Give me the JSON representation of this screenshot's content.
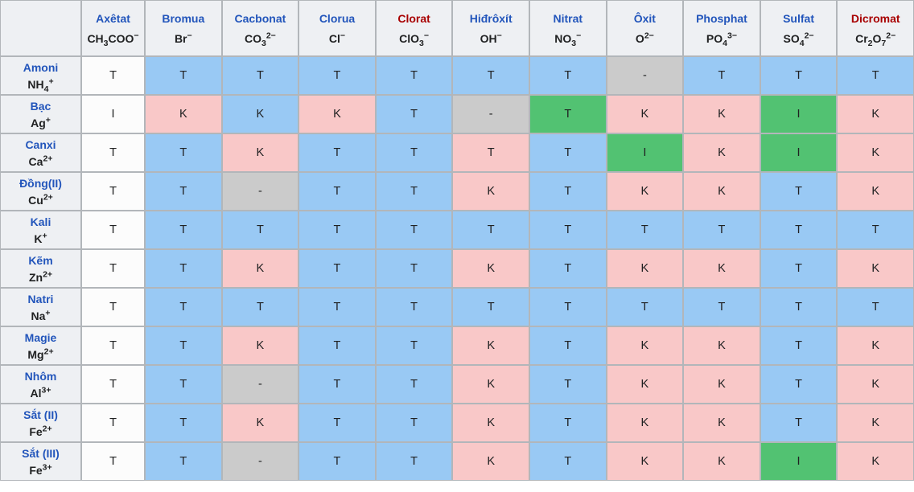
{
  "table": {
    "corner_label": "",
    "cell_colors": {
      "white": "#fcfcfc",
      "blue": "#99c9f4",
      "pink": "#f9c8c8",
      "green": "#52c272",
      "gray": "#cbcbcb"
    },
    "text_colors": {
      "link_blue": "#2255bb",
      "link_red": "#a80000",
      "formula": "#202122",
      "value": "#202122"
    },
    "value_legend_letters": [
      "T",
      "K",
      "I",
      "-"
    ],
    "columns": [
      {
        "label": "Axêtat",
        "formula": "CH~3~COO^−^",
        "label_color": "blue"
      },
      {
        "label": "Bromua",
        "formula": "Br^−^",
        "label_color": "blue"
      },
      {
        "label": "Cacbonat",
        "formula": "CO~3~^2−^",
        "label_color": "blue"
      },
      {
        "label": "Clorua",
        "formula": "Cl^−^",
        "label_color": "blue"
      },
      {
        "label": "Clorat",
        "formula": "ClO~3~^−^",
        "label_color": "red"
      },
      {
        "label": "Hiđrôxít",
        "formula": "OH^−^",
        "label_color": "blue"
      },
      {
        "label": "Nitrat",
        "formula": "NO~3~^−^",
        "label_color": "blue"
      },
      {
        "label": "Ôxit",
        "formula": "O^2−^",
        "label_color": "blue"
      },
      {
        "label": "Phosphat",
        "formula": "PO~4~^3−^",
        "label_color": "blue"
      },
      {
        "label": "Sulfat",
        "formula": "SO~4~^2−^",
        "label_color": "blue"
      },
      {
        "label": "Dicromat",
        "formula": "Cr~2~O~7~^2−^",
        "label_color": "red"
      }
    ],
    "rows": [
      {
        "label": "Amoni",
        "formula": "NH~4~^+^",
        "cells": [
          "T|white",
          "T|blue",
          "T|blue",
          "T|blue",
          "T|blue",
          "T|blue",
          "T|blue",
          "-|gray",
          "T|blue",
          "T|blue",
          "T|blue"
        ]
      },
      {
        "label": "Bạc",
        "formula": "Ag^+^",
        "cells": [
          "I|white",
          "K|pink",
          "K|blue",
          "K|pink",
          "T|blue",
          "-|gray",
          "T|green",
          "K|pink",
          "K|pink",
          "I|green",
          "K|pink"
        ]
      },
      {
        "label": "Canxi",
        "formula": "Ca^2+^",
        "cells": [
          "T|white",
          "T|blue",
          "K|pink",
          "T|blue",
          "T|blue",
          "T|pink",
          "T|blue",
          "I|green",
          "K|pink",
          "I|green",
          "K|pink"
        ]
      },
      {
        "label": "Đồng(II)",
        "formula": "Cu^2+^",
        "cells": [
          "T|white",
          "T|blue",
          "-|gray",
          "T|blue",
          "T|blue",
          "K|pink",
          "T|blue",
          "K|pink",
          "K|pink",
          "T|blue",
          "K|pink"
        ]
      },
      {
        "label": "Kali",
        "formula": "K^+^",
        "cells": [
          "T|white",
          "T|blue",
          "T|blue",
          "T|blue",
          "T|blue",
          "T|blue",
          "T|blue",
          "T|blue",
          "T|blue",
          "T|blue",
          "T|blue"
        ]
      },
      {
        "label": "Kẽm",
        "formula": "Zn^2+^",
        "cells": [
          "T|white",
          "T|blue",
          "K|pink",
          "T|blue",
          "T|blue",
          "K|pink",
          "T|blue",
          "K|pink",
          "K|pink",
          "T|blue",
          "K|pink"
        ]
      },
      {
        "label": "Natri",
        "formula": "Na^+^",
        "cells": [
          "T|white",
          "T|blue",
          "T|blue",
          "T|blue",
          "T|blue",
          "T|blue",
          "T|blue",
          "T|blue",
          "T|blue",
          "T|blue",
          "T|blue"
        ]
      },
      {
        "label": "Magie",
        "formula": "Mg^2+^",
        "cells": [
          "T|white",
          "T|blue",
          "K|pink",
          "T|blue",
          "T|blue",
          "K|pink",
          "T|blue",
          "K|pink",
          "K|pink",
          "T|blue",
          "K|pink"
        ]
      },
      {
        "label": "Nhôm",
        "formula": "Al^3+^",
        "cells": [
          "T|white",
          "T|blue",
          "-|gray",
          "T|blue",
          "T|blue",
          "K|pink",
          "T|blue",
          "K|pink",
          "K|pink",
          "T|blue",
          "K|pink"
        ]
      },
      {
        "label": "Sắt (II)",
        "formula": "Fe^2+^",
        "cells": [
          "T|white",
          "T|blue",
          "K|pink",
          "T|blue",
          "T|blue",
          "K|pink",
          "T|blue",
          "K|pink",
          "K|pink",
          "T|blue",
          "K|pink"
        ]
      },
      {
        "label": "Sắt (III)",
        "formula": "Fe^3+^",
        "cells": [
          "T|white",
          "T|blue",
          "-|gray",
          "T|blue",
          "T|blue",
          "K|pink",
          "T|blue",
          "K|pink",
          "K|pink",
          "I|green",
          "K|pink"
        ]
      }
    ]
  }
}
